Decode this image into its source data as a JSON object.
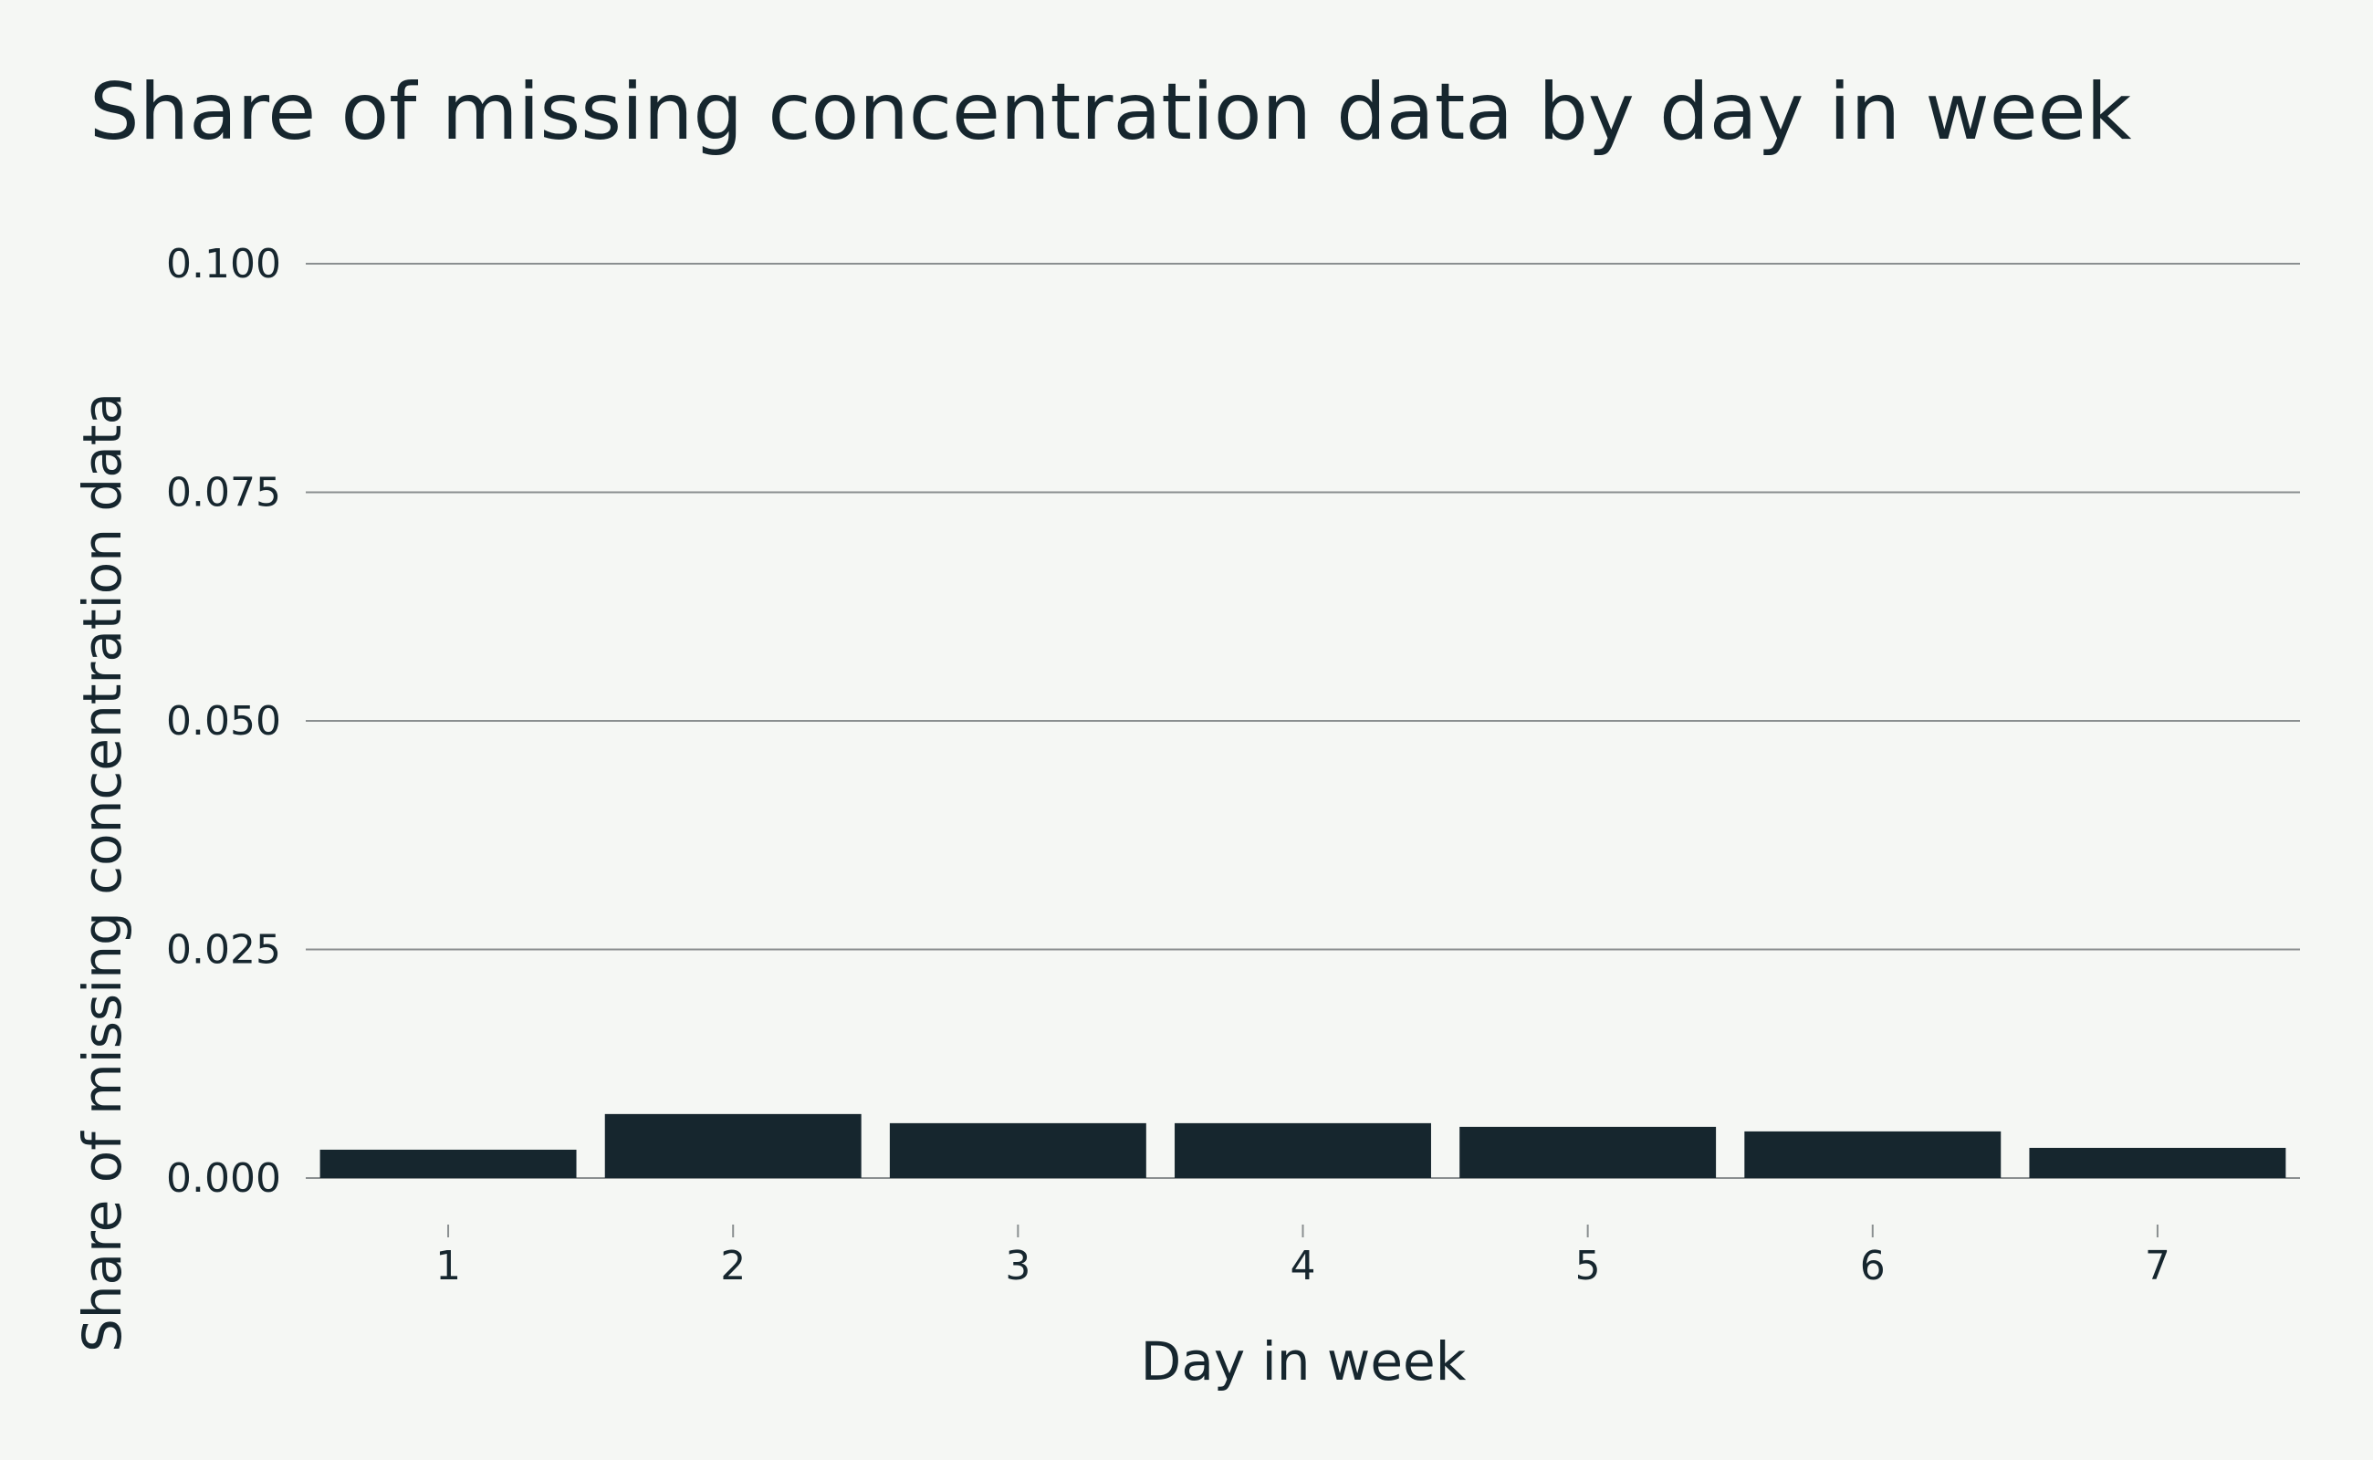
{
  "chart_data": {
    "type": "bar",
    "title": "Share of missing concentration data by day in week",
    "xlabel": "Day in week",
    "ylabel": "Share of missing concentration data",
    "categories": [
      "1",
      "2",
      "3",
      "4",
      "5",
      "6",
      "7"
    ],
    "values": [
      0.0031,
      0.007,
      0.006,
      0.006,
      0.0056,
      0.0051,
      0.0033
    ],
    "ylim": [
      0,
      0.1
    ],
    "yticks": [
      "0.000",
      "0.025",
      "0.050",
      "0.075",
      "0.100"
    ],
    "grid": true,
    "bar_color": "#16262e",
    "background_color": "#f5f7f4"
  }
}
